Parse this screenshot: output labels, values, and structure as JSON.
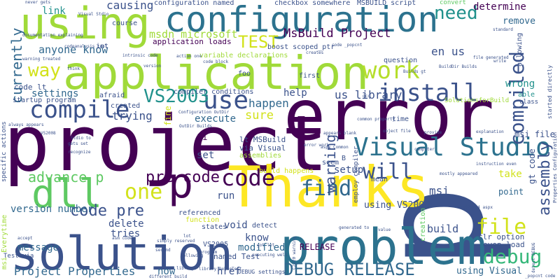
{
  "words": [
    {
      "text": "p",
      "color": "#3b528b"
    },
    {
      "text": "error",
      "color": "#440154"
    },
    {
      "text": "project",
      "color": "#440154"
    },
    {
      "text": "application",
      "color": "#a0da39"
    },
    {
      "text": "problem",
      "color": "#2c728e"
    },
    {
      "text": "solution",
      "color": "#3b528b"
    },
    {
      "text": "Thanks",
      "color": "#fde725"
    },
    {
      "text": "using",
      "color": "#a0da39"
    },
    {
      "text": "configuration",
      "color": "#2c728e"
    },
    {
      "text": "dll",
      "color": "#5ec962"
    },
    {
      "text": "p",
      "color": "#440154"
    },
    {
      "text": "Visual Studio",
      "color": "#2c728e"
    },
    {
      "text": "code",
      "color": "#440154"
    },
    {
      "text": "use",
      "color": "#3b528b"
    },
    {
      "text": "compile",
      "color": "#3b528b"
    },
    {
      "text": "install",
      "color": "#3b528b"
    },
    {
      "text": "work",
      "color": "#b5de2b"
    },
    {
      "text": "find",
      "color": "#31688e"
    },
    {
      "text": "compiled",
      "color": "#3b528b"
    },
    {
      "text": "VS2003",
      "color": "#21918c"
    },
    {
      "text": "one",
      "color": "#d2e21b"
    },
    {
      "text": "will",
      "color": "#3b528b"
    },
    {
      "text": "file",
      "color": "#d2e21b"
    },
    {
      "text": "debug",
      "color": "#35b779"
    },
    {
      "text": "assembly",
      "color": "#3b528b"
    },
    {
      "text": "currently",
      "color": "#31688e"
    },
    {
      "text": "code pre",
      "color": "#3b528b"
    },
    {
      "text": "pre code",
      "color": "#440154"
    },
    {
      "text": "advance p",
      "color": "#5ec962"
    },
    {
      "text": "DEBUG RELEASE",
      "color": "#31688e"
    },
    {
      "text": "need",
      "color": "#21918c"
    },
    {
      "text": "way",
      "color": "#d2e21b"
    },
    {
      "text": "TEST",
      "color": "#d2e21b"
    },
    {
      "text": "msdn microsoft",
      "color": "#a0da39"
    },
    {
      "text": "MsBuild Project",
      "color": "#440154"
    },
    {
      "text": "anyone know",
      "color": "#31688e"
    },
    {
      "text": "settings",
      "color": "#31688e"
    },
    {
      "text": "warning",
      "color": "#3b528b"
    },
    {
      "text": "Project Properties",
      "color": "#31688e"
    },
    {
      "text": "version number",
      "color": "#31688e"
    },
    {
      "text": "message",
      "color": "#31688e"
    },
    {
      "text": "trying",
      "color": "#3b528b"
    },
    {
      "text": "execute",
      "color": "#31688e"
    },
    {
      "text": "sure",
      "color": "#d2e21b"
    },
    {
      "text": "happen",
      "color": "#31688e"
    },
    {
      "text": "us library",
      "color": "#3b528b"
    },
    {
      "text": "en us",
      "color": "#3b528b"
    },
    {
      "text": "msi",
      "color": "#3b528b"
    },
    {
      "text": "wrong",
      "color": "#21918c"
    },
    {
      "text": "causing",
      "color": "#3b528b"
    },
    {
      "text": "link",
      "color": "#21918c"
    },
    {
      "text": "determine",
      "color": "#440154"
    },
    {
      "text": "remove",
      "color": "#31688e"
    },
    {
      "text": "build",
      "color": "#3b528b"
    },
    {
      "text": "using Visual",
      "color": "#31688e"
    },
    {
      "text": "using VS2005",
      "color": "#3b528b"
    },
    {
      "text": "modified",
      "color": "#31688e"
    },
    {
      "text": "RELEASE",
      "color": "#440154"
    },
    {
      "text": "delete",
      "color": "#3b528b"
    },
    {
      "text": "tries",
      "color": "#3b528b"
    },
    {
      "text": "now",
      "color": "#31688e"
    },
    {
      "text": "href",
      "color": "#3b528b"
    },
    {
      "text": "know",
      "color": "#3b528b"
    },
    {
      "text": "void",
      "color": "#3b528b"
    },
    {
      "text": "run",
      "color": "#3b528b"
    },
    {
      "text": "set",
      "color": "#3b528b"
    },
    {
      "text": "take",
      "color": "#d2e21b"
    },
    {
      "text": "gt code",
      "color": "#3b528b"
    },
    {
      "text": "setup",
      "color": "#3b528b"
    },
    {
      "text": "help",
      "color": "#3b528b"
    },
    {
      "text": "Hi",
      "color": "#440154"
    },
    {
      "text": "fine",
      "color": "#d2e21b"
    },
    {
      "text": "msi file",
      "color": "#3b528b"
    },
    {
      "text": "point",
      "color": "#31688e"
    },
    {
      "text": "even load",
      "color": "#3b528b"
    },
    {
      "text": "clr option",
      "color": "#3b528b"
    },
    {
      "text": "code lt",
      "color": "#3b528b"
    },
    {
      "text": "startup program",
      "color": "#3b528b"
    },
    {
      "text": "created",
      "color": "#3b528b"
    },
    {
      "text": "afraid",
      "color": "#3b528b"
    },
    {
      "text": "compiler conditions",
      "color": "#3b528b"
    },
    {
      "text": "boost scoped_ptr",
      "color": "#3b528b"
    },
    {
      "text": "application loads",
      "color": "#440154"
    },
    {
      "text": "configuration named",
      "color": "#3b528b"
    },
    {
      "text": "checkbox somewhere",
      "color": "#3b528b"
    },
    {
      "text": "MSBUILD script",
      "color": "#3b528b"
    },
    {
      "text": "convert",
      "color": "#5ec962"
    },
    {
      "text": "variable declarations",
      "color": "#a0da39"
    },
    {
      "text": "lt MSBuild",
      "color": "#3b528b"
    },
    {
      "text": "via Visual",
      "color": "#3b528b"
    },
    {
      "text": "assemblies",
      "color": "#a0da39"
    },
    {
      "text": "build happens",
      "color": "#d2e21b"
    },
    {
      "text": "named Test",
      "color": "#3b528b"
    },
    {
      "text": "VS2005",
      "color": "#3b528b"
    },
    {
      "text": "referenced",
      "color": "#3b528b"
    },
    {
      "text": "function",
      "color": "#d2e21b"
    },
    {
      "text": "states",
      "color": "#3b528b"
    },
    {
      "text": "detect",
      "color": "#3b528b"
    },
    {
      "text": "seem",
      "color": "#3b528b"
    },
    {
      "text": "B",
      "color": "#3b528b"
    },
    {
      "text": "mean",
      "color": "#3b528b"
    },
    {
      "text": "time",
      "color": "#3b528b"
    },
    {
      "text": "question",
      "color": "#3b528b"
    },
    {
      "text": "first",
      "color": "#3b528b"
    },
    {
      "text": "foo",
      "color": "#3b528b"
    },
    {
      "text": "int",
      "color": "#3b528b"
    },
    {
      "text": "course",
      "color": "#3b528b"
    },
    {
      "text": "creation",
      "color": "#5ec962"
    },
    {
      "text": "allowing",
      "color": "#3b528b"
    },
    {
      "text": "able",
      "color": "#21918c"
    },
    {
      "text": "class",
      "color": "#3b528b"
    },
    {
      "text": "msi Everytime",
      "color": "#a0da39"
    },
    {
      "text": "specific actions",
      "color": "#3b528b"
    },
    {
      "text": "Test via",
      "color": "#3b528b"
    },
    {
      "text": "DEBUG settings",
      "color": "#3b528b"
    },
    {
      "text": "SolutionsforBuild",
      "color": "#a0da39"
    },
    {
      "text": "employ compiler",
      "color": "#3b528b"
    },
    {
      "text": "started directly",
      "color": "#3b528b"
    },
    {
      "text": "Properties Configuration",
      "color": "#3b528b"
    },
    {
      "text": "documentation explaining",
      "color": "#3b528b"
    },
    {
      "text": "warning treated",
      "color": "#3b528b"
    },
    {
      "text": "never gets",
      "color": "#3b528b"
    },
    {
      "text": "Visual Stdio",
      "color": "#3b528b"
    },
    {
      "text": "codeanalysis tool",
      "color": "#3b528b"
    },
    {
      "text": "intrinsic code",
      "color": "#3b528b"
    },
    {
      "text": "bb629294 aspx",
      "color": "#3b528b"
    },
    {
      "text": "mostly appeared",
      "color": "#3b528b"
    },
    {
      "text": "instruction even",
      "color": "#3b528b"
    },
    {
      "text": "explanation",
      "color": "#3b528b"
    },
    {
      "text": "file generated",
      "color": "#3b528b"
    },
    {
      "text": "BuildDir Builds",
      "color": "#3b528b"
    },
    {
      "text": "Builds gt",
      "color": "#3b528b"
    },
    {
      "text": "write",
      "color": "#3b528b"
    },
    {
      "text": "gets set",
      "color": "#3b528b"
    },
    {
      "text": "recognize",
      "color": "#3b528b"
    },
    {
      "text": "Stdio to",
      "color": "#3b528b"
    },
    {
      "text": "always appears",
      "color": "#3b528b"
    },
    {
      "text": "Configuration OutDir",
      "color": "#3b528b"
    },
    {
      "text": "OutDir Builds",
      "color": "#3b528b"
    },
    {
      "text": "simply reserved",
      "color": "#3b528b"
    },
    {
      "text": "asm code",
      "color": "#3b528b"
    },
    {
      "text": "library",
      "color": "#3b528b"
    },
    {
      "text": "different build",
      "color": "#3b528b"
    },
    {
      "text": "appears blank",
      "color": "#3b528b"
    },
    {
      "text": "common property",
      "color": "#3b528b"
    },
    {
      "text": "aspx Common",
      "color": "#3b528b"
    },
    {
      "text": "code _popcnt",
      "color": "#3b528b"
    },
    {
      "text": "gcc",
      "color": "#3b528b"
    },
    {
      "text": "object file",
      "color": "#3b528b"
    },
    {
      "text": "executing well",
      "color": "#3b528b"
    },
    {
      "text": "got lot",
      "color": "#3b528b"
    },
    {
      "text": "second",
      "color": "#3b528b"
    },
    {
      "text": "accept",
      "color": "#3b528b"
    },
    {
      "text": "program",
      "color": "#3b528b"
    },
    {
      "text": "value",
      "color": "#3b528b"
    },
    {
      "text": "generated to",
      "color": "#3b528b"
    },
    {
      "text": "_popcnt code",
      "color": "#3b528b"
    },
    {
      "text": "library DebugTest",
      "color": "#3b528b"
    },
    {
      "text": "following",
      "color": "#3b528b"
    },
    {
      "text": "lot",
      "color": "#3b528b"
    },
    {
      "text": "C2220 warning",
      "color": "#3b528b"
    },
    {
      "text": "detect DEBUG",
      "color": "#3b528b"
    },
    {
      "text": "standard",
      "color": "#3b528b"
    },
    {
      "text": "think",
      "color": "#3b528b"
    },
    {
      "text": "code block",
      "color": "#3b528b"
    },
    {
      "text": "action one",
      "color": "#3b528b"
    },
    {
      "text": "version",
      "color": "#3b528b"
    },
    {
      "text": "VS2008",
      "color": "#3b528b"
    },
    {
      "text": "computer",
      "color": "#3b528b"
    },
    {
      "text": "error work",
      "color": "#3b528b"
    },
    {
      "text": "provide",
      "color": "#3b528b"
    },
    {
      "text": "creates",
      "color": "#3b528b"
    }
  ]
}
